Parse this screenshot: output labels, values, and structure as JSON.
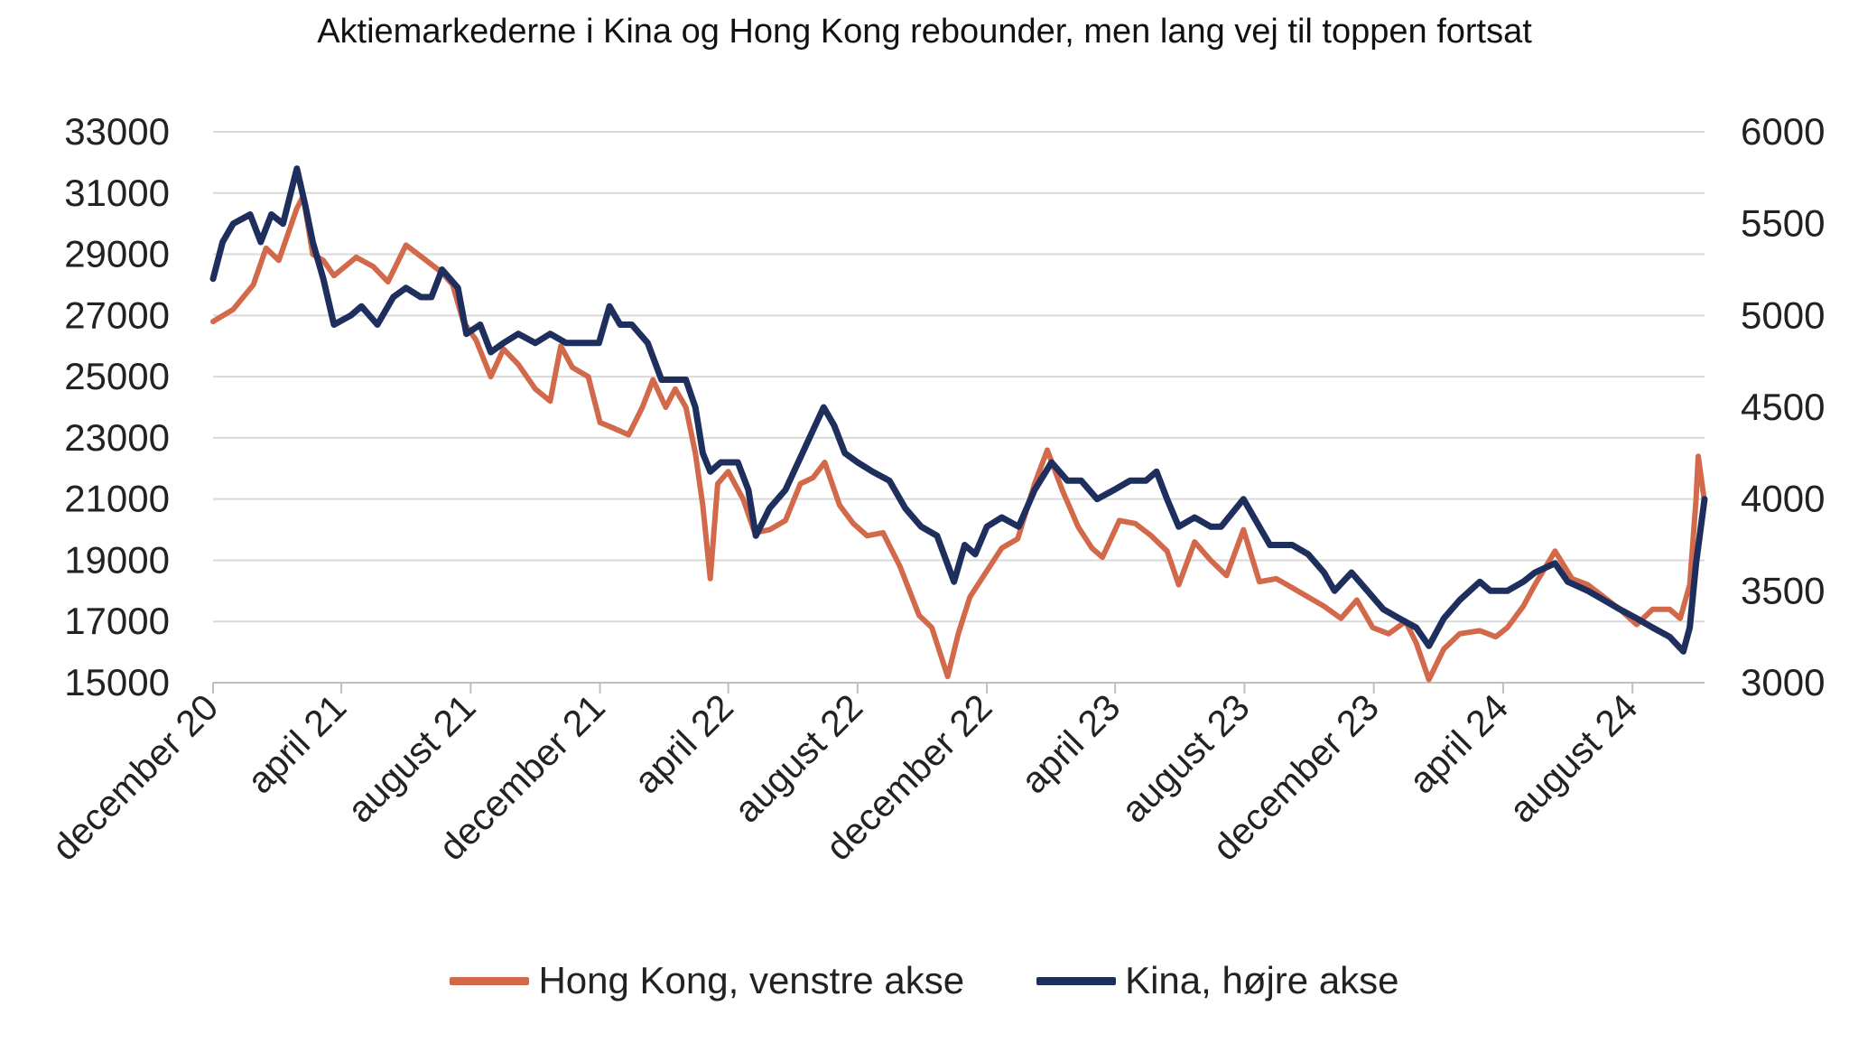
{
  "chart_data": {
    "type": "line",
    "title": "Aktiemarkederne i Kina og Hong Kong rebounder, men lang vej til toppen fortsat",
    "x_tick_labels": [
      "december 20",
      "april 21",
      "august 21",
      "december 21",
      "april 22",
      "august 22",
      "december 22",
      "april 23",
      "august 23",
      "december 23",
      "april 24",
      "august 24"
    ],
    "x_tick_dates": [
      "2020-12-01",
      "2021-04-01",
      "2021-08-01",
      "2021-12-01",
      "2022-04-01",
      "2022-08-01",
      "2022-12-01",
      "2023-04-01",
      "2023-08-01",
      "2023-12-01",
      "2024-04-01",
      "2024-08-01"
    ],
    "x_range": [
      "2020-12-01",
      "2024-10-08"
    ],
    "y_left": {
      "min": 15000,
      "max": 33000,
      "ticks": [
        "15000",
        "17000",
        "19000",
        "21000",
        "23000",
        "25000",
        "27000",
        "29000",
        "31000",
        "33000"
      ]
    },
    "y_right": {
      "min": 3000,
      "max": 6000,
      "ticks": [
        "3000",
        "3500",
        "4000",
        "4500",
        "5000",
        "5500",
        "6000"
      ]
    },
    "grid": "horizontal",
    "legend_position": "bottom",
    "series": [
      {
        "name": "Hong Kong, venstre akse",
        "axis": "left",
        "color": "#d2694a",
        "points": [
          [
            "2020-12-01",
            26800
          ],
          [
            "2020-12-20",
            27200
          ],
          [
            "2021-01-08",
            28000
          ],
          [
            "2021-01-20",
            29200
          ],
          [
            "2021-02-01",
            28800
          ],
          [
            "2021-02-18",
            30500
          ],
          [
            "2021-02-24",
            30900
          ],
          [
            "2021-03-05",
            29000
          ],
          [
            "2021-03-15",
            28800
          ],
          [
            "2021-03-25",
            28300
          ],
          [
            "2021-04-15",
            28900
          ],
          [
            "2021-05-01",
            28600
          ],
          [
            "2021-05-15",
            28100
          ],
          [
            "2021-06-01",
            29300
          ],
          [
            "2021-06-20",
            28800
          ],
          [
            "2021-07-05",
            28400
          ],
          [
            "2021-07-15",
            28000
          ],
          [
            "2021-07-25",
            26800
          ],
          [
            "2021-08-06",
            26200
          ],
          [
            "2021-08-20",
            25000
          ],
          [
            "2021-09-01",
            25900
          ],
          [
            "2021-09-15",
            25400
          ],
          [
            "2021-10-01",
            24600
          ],
          [
            "2021-10-15",
            24200
          ],
          [
            "2021-10-25",
            26000
          ],
          [
            "2021-11-05",
            25300
          ],
          [
            "2021-11-20",
            25000
          ],
          [
            "2021-12-01",
            23500
          ],
          [
            "2021-12-15",
            23300
          ],
          [
            "2021-12-28",
            23100
          ],
          [
            "2022-01-10",
            24000
          ],
          [
            "2022-01-20",
            24900
          ],
          [
            "2022-02-01",
            24000
          ],
          [
            "2022-02-10",
            24600
          ],
          [
            "2022-02-20",
            24000
          ],
          [
            "2022-03-01",
            22500
          ],
          [
            "2022-03-08",
            20800
          ],
          [
            "2022-03-15",
            18400
          ],
          [
            "2022-03-22",
            21500
          ],
          [
            "2022-04-01",
            21900
          ],
          [
            "2022-04-15",
            21000
          ],
          [
            "2022-04-26",
            19900
          ],
          [
            "2022-05-10",
            20000
          ],
          [
            "2022-05-25",
            20300
          ],
          [
            "2022-06-08",
            21500
          ],
          [
            "2022-06-20",
            21700
          ],
          [
            "2022-07-01",
            22200
          ],
          [
            "2022-07-15",
            20800
          ],
          [
            "2022-07-28",
            20200
          ],
          [
            "2022-08-10",
            19800
          ],
          [
            "2022-08-25",
            19900
          ],
          [
            "2022-09-10",
            18800
          ],
          [
            "2022-09-28",
            17200
          ],
          [
            "2022-10-10",
            16800
          ],
          [
            "2022-10-25",
            15200
          ],
          [
            "2022-11-04",
            16600
          ],
          [
            "2022-11-15",
            17800
          ],
          [
            "2022-11-30",
            18600
          ],
          [
            "2022-12-15",
            19400
          ],
          [
            "2022-12-30",
            19700
          ],
          [
            "2023-01-15",
            21500
          ],
          [
            "2023-01-27",
            22600
          ],
          [
            "2023-02-10",
            21300
          ],
          [
            "2023-02-25",
            20100
          ],
          [
            "2023-03-10",
            19400
          ],
          [
            "2023-03-20",
            19100
          ],
          [
            "2023-04-05",
            20300
          ],
          [
            "2023-04-20",
            20200
          ],
          [
            "2023-05-05",
            19800
          ],
          [
            "2023-05-20",
            19300
          ],
          [
            "2023-05-31",
            18200
          ],
          [
            "2023-06-15",
            19600
          ],
          [
            "2023-06-30",
            19000
          ],
          [
            "2023-07-15",
            18500
          ],
          [
            "2023-07-31",
            20000
          ],
          [
            "2023-08-15",
            18300
          ],
          [
            "2023-08-31",
            18400
          ],
          [
            "2023-09-15",
            18100
          ],
          [
            "2023-09-30",
            17800
          ],
          [
            "2023-10-15",
            17500
          ],
          [
            "2023-10-31",
            17100
          ],
          [
            "2023-11-15",
            17700
          ],
          [
            "2023-11-30",
            16800
          ],
          [
            "2023-12-15",
            16600
          ],
          [
            "2023-12-31",
            17000
          ],
          [
            "2024-01-10",
            16300
          ],
          [
            "2024-01-22",
            15100
          ],
          [
            "2024-02-05",
            16100
          ],
          [
            "2024-02-20",
            16600
          ],
          [
            "2024-03-10",
            16700
          ],
          [
            "2024-03-25",
            16500
          ],
          [
            "2024-04-05",
            16800
          ],
          [
            "2024-04-20",
            17500
          ],
          [
            "2024-05-01",
            18200
          ],
          [
            "2024-05-20",
            19300
          ],
          [
            "2024-06-05",
            18400
          ],
          [
            "2024-06-20",
            18200
          ],
          [
            "2024-07-05",
            17800
          ],
          [
            "2024-07-20",
            17400
          ],
          [
            "2024-08-05",
            16900
          ],
          [
            "2024-08-20",
            17400
          ],
          [
            "2024-09-05",
            17400
          ],
          [
            "2024-09-15",
            17100
          ],
          [
            "2024-09-24",
            18200
          ],
          [
            "2024-09-30",
            21000
          ],
          [
            "2024-10-02",
            22400
          ],
          [
            "2024-10-08",
            20900
          ]
        ]
      },
      {
        "name": "Kina, højre akse",
        "axis": "right",
        "color": "#1e2f5e",
        "points": [
          [
            "2020-12-01",
            5200
          ],
          [
            "2020-12-10",
            5400
          ],
          [
            "2020-12-20",
            5500
          ],
          [
            "2021-01-05",
            5550
          ],
          [
            "2021-01-15",
            5400
          ],
          [
            "2021-01-25",
            5550
          ],
          [
            "2021-02-05",
            5500
          ],
          [
            "2021-02-18",
            5800
          ],
          [
            "2021-02-26",
            5600
          ],
          [
            "2021-03-05",
            5400
          ],
          [
            "2021-03-15",
            5200
          ],
          [
            "2021-03-25",
            4950
          ],
          [
            "2021-04-10",
            5000
          ],
          [
            "2021-04-20",
            5050
          ],
          [
            "2021-05-05",
            4950
          ],
          [
            "2021-05-20",
            5100
          ],
          [
            "2021-06-01",
            5150
          ],
          [
            "2021-06-15",
            5100
          ],
          [
            "2021-06-25",
            5100
          ],
          [
            "2021-07-05",
            5250
          ],
          [
            "2021-07-20",
            5150
          ],
          [
            "2021-07-28",
            4900
          ],
          [
            "2021-08-10",
            4950
          ],
          [
            "2021-08-20",
            4800
          ],
          [
            "2021-09-01",
            4850
          ],
          [
            "2021-09-15",
            4900
          ],
          [
            "2021-10-01",
            4850
          ],
          [
            "2021-10-15",
            4900
          ],
          [
            "2021-10-30",
            4850
          ],
          [
            "2021-11-15",
            4850
          ],
          [
            "2021-11-30",
            4850
          ],
          [
            "2021-12-10",
            5050
          ],
          [
            "2021-12-20",
            4950
          ],
          [
            "2021-12-31",
            4950
          ],
          [
            "2022-01-15",
            4850
          ],
          [
            "2022-01-28",
            4650
          ],
          [
            "2022-02-10",
            4650
          ],
          [
            "2022-02-20",
            4650
          ],
          [
            "2022-03-01",
            4500
          ],
          [
            "2022-03-08",
            4250
          ],
          [
            "2022-03-15",
            4150
          ],
          [
            "2022-03-25",
            4200
          ],
          [
            "2022-04-10",
            4200
          ],
          [
            "2022-04-20",
            4050
          ],
          [
            "2022-04-27",
            3800
          ],
          [
            "2022-05-10",
            3950
          ],
          [
            "2022-05-25",
            4050
          ],
          [
            "2022-06-10",
            4250
          ],
          [
            "2022-06-30",
            4500
          ],
          [
            "2022-07-10",
            4400
          ],
          [
            "2022-07-20",
            4250
          ],
          [
            "2022-08-01",
            4200
          ],
          [
            "2022-08-15",
            4150
          ],
          [
            "2022-08-31",
            4100
          ],
          [
            "2022-09-15",
            3950
          ],
          [
            "2022-09-30",
            3850
          ],
          [
            "2022-10-15",
            3800
          ],
          [
            "2022-10-31",
            3550
          ],
          [
            "2022-11-10",
            3750
          ],
          [
            "2022-11-20",
            3700
          ],
          [
            "2022-12-01",
            3850
          ],
          [
            "2022-12-15",
            3900
          ],
          [
            "2022-12-31",
            3850
          ],
          [
            "2023-01-15",
            4050
          ],
          [
            "2023-01-31",
            4200
          ],
          [
            "2023-02-15",
            4100
          ],
          [
            "2023-02-28",
            4100
          ],
          [
            "2023-03-15",
            4000
          ],
          [
            "2023-03-31",
            4050
          ],
          [
            "2023-04-15",
            4100
          ],
          [
            "2023-04-30",
            4100
          ],
          [
            "2023-05-10",
            4150
          ],
          [
            "2023-05-20",
            4000
          ],
          [
            "2023-05-31",
            3850
          ],
          [
            "2023-06-15",
            3900
          ],
          [
            "2023-06-30",
            3850
          ],
          [
            "2023-07-10",
            3850
          ],
          [
            "2023-07-31",
            4000
          ],
          [
            "2023-08-10",
            3900
          ],
          [
            "2023-08-25",
            3750
          ],
          [
            "2023-09-15",
            3750
          ],
          [
            "2023-09-30",
            3700
          ],
          [
            "2023-10-15",
            3600
          ],
          [
            "2023-10-25",
            3500
          ],
          [
            "2023-11-10",
            3600
          ],
          [
            "2023-11-25",
            3500
          ],
          [
            "2023-12-10",
            3400
          ],
          [
            "2023-12-25",
            3350
          ],
          [
            "2024-01-10",
            3300
          ],
          [
            "2024-01-22",
            3200
          ],
          [
            "2024-02-05",
            3350
          ],
          [
            "2024-02-20",
            3450
          ],
          [
            "2024-03-10",
            3550
          ],
          [
            "2024-03-20",
            3500
          ],
          [
            "2024-04-05",
            3500
          ],
          [
            "2024-04-20",
            3550
          ],
          [
            "2024-05-01",
            3600
          ],
          [
            "2024-05-20",
            3650
          ],
          [
            "2024-06-01",
            3550
          ],
          [
            "2024-06-20",
            3500
          ],
          [
            "2024-07-05",
            3450
          ],
          [
            "2024-07-20",
            3400
          ],
          [
            "2024-08-05",
            3350
          ],
          [
            "2024-08-20",
            3300
          ],
          [
            "2024-09-05",
            3250
          ],
          [
            "2024-09-18",
            3170
          ],
          [
            "2024-09-24",
            3300
          ],
          [
            "2024-09-30",
            3650
          ],
          [
            "2024-10-08",
            4000
          ]
        ]
      }
    ]
  }
}
